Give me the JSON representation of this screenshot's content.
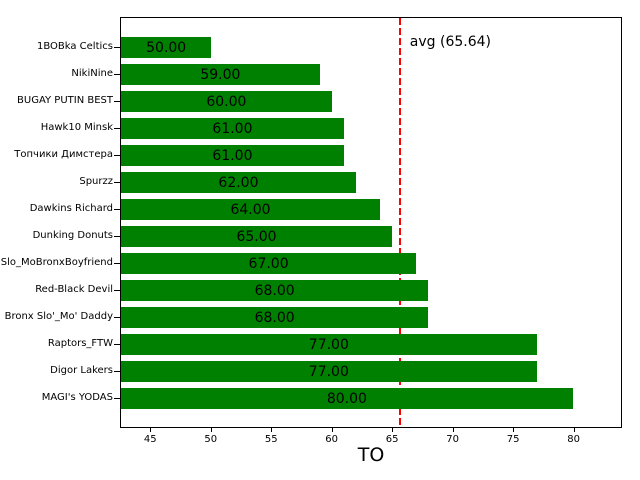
{
  "chart_data": {
    "type": "bar",
    "orientation": "horizontal",
    "title": "",
    "xlabel": "TO",
    "ylabel": "",
    "categories": [
      "1BOBka Celtics",
      "NikiNine",
      "BUGAY PUTIN BEST",
      "Hawk10 Minsk",
      "Топчики Димстера",
      "Spurzz",
      "Dawkins Richard",
      "Dunking Donuts",
      "Slo_MoBronxBoyfriend",
      "Red-Black Devil",
      "Bronx Slo'_Mo' Daddy",
      "Raptors_FTW",
      "Digor Lakers",
      "MAGI's YODAS"
    ],
    "values": [
      50,
      59,
      60,
      61,
      61,
      62,
      64,
      65,
      67,
      68,
      68,
      77,
      77,
      80
    ],
    "value_labels": [
      "50.00",
      "59.00",
      "60.00",
      "61.00",
      "61.00",
      "62.00",
      "64.00",
      "65.00",
      "67.00",
      "68.00",
      "68.00",
      "77.00",
      "77.00",
      "80.00"
    ],
    "xticks": [
      45,
      50,
      55,
      60,
      65,
      70,
      75,
      80
    ],
    "xtick_labels": [
      "45",
      "50",
      "55",
      "60",
      "65",
      "70",
      "75",
      "80"
    ],
    "xlim": [
      42.5,
      84
    ],
    "grid": false,
    "legend": false,
    "avg_value": 65.64,
    "avg_label": "avg (65.64)",
    "bar_color": "#008000",
    "avg_line_color": "#ff0000",
    "text_color": "#000000"
  }
}
